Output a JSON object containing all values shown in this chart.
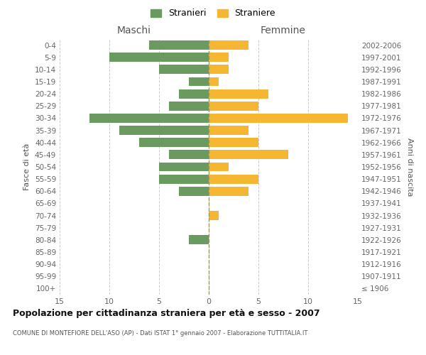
{
  "age_groups": [
    "100+",
    "95-99",
    "90-94",
    "85-89",
    "80-84",
    "75-79",
    "70-74",
    "65-69",
    "60-64",
    "55-59",
    "50-54",
    "45-49",
    "40-44",
    "35-39",
    "30-34",
    "25-29",
    "20-24",
    "15-19",
    "10-14",
    "5-9",
    "0-4"
  ],
  "birth_years": [
    "≤ 1906",
    "1907-1911",
    "1912-1916",
    "1917-1921",
    "1922-1926",
    "1927-1931",
    "1932-1936",
    "1937-1941",
    "1942-1946",
    "1947-1951",
    "1952-1956",
    "1957-1961",
    "1962-1966",
    "1967-1971",
    "1972-1976",
    "1977-1981",
    "1982-1986",
    "1987-1991",
    "1992-1996",
    "1997-2001",
    "2002-2006"
  ],
  "males": [
    0,
    0,
    0,
    0,
    2,
    0,
    0,
    0,
    3,
    5,
    5,
    4,
    7,
    9,
    12,
    4,
    3,
    2,
    5,
    10,
    6
  ],
  "females": [
    0,
    0,
    0,
    0,
    0,
    0,
    1,
    0,
    4,
    5,
    2,
    8,
    5,
    4,
    14,
    5,
    6,
    1,
    2,
    2,
    4
  ],
  "male_color": "#6a9a5f",
  "female_color": "#f5b731",
  "background_color": "#ffffff",
  "grid_color": "#cccccc",
  "title": "Popolazione per cittadinanza straniera per età e sesso - 2007",
  "subtitle": "COMUNE DI MONTEFIORE DELL'ASO (AP) - Dati ISTAT 1° gennaio 2007 - Elaborazione TUTTITALIA.IT",
  "ylabel_left": "Fasce di età",
  "ylabel_right": "Anni di nascita",
  "xlabel_left": "Maschi",
  "xlabel_right": "Femmine",
  "legend_male": "Stranieri",
  "legend_female": "Straniere",
  "xlim": 15
}
